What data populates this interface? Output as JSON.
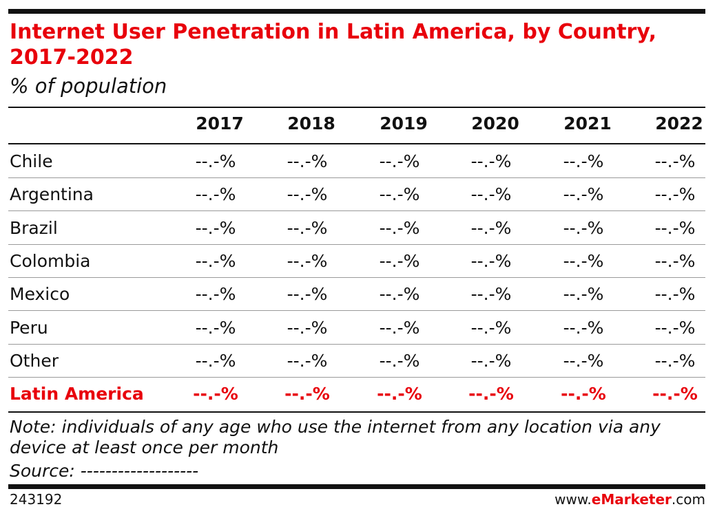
{
  "header": {
    "title": "Internet User Penetration in Latin America, by Country, 2017-2022",
    "subtitle": "% of population"
  },
  "table": {
    "columns": [
      "2017",
      "2018",
      "2019",
      "2020",
      "2021",
      "2022"
    ],
    "rows": [
      [
        "Chile",
        "--.-%",
        "--.-%",
        "--.-%",
        "--.-%",
        "--.-%",
        "--.-%"
      ],
      [
        "Argentina",
        "--.-%",
        "--.-%",
        "--.-%",
        "--.-%",
        "--.-%",
        "--.-%"
      ],
      [
        "Brazil",
        "--.-%",
        "--.-%",
        "--.-%",
        "--.-%",
        "--.-%",
        "--.-%"
      ],
      [
        "Colombia",
        "--.-%",
        "--.-%",
        "--.-%",
        "--.-%",
        "--.-%",
        "--.-%"
      ],
      [
        "Mexico",
        "--.-%",
        "--.-%",
        "--.-%",
        "--.-%",
        "--.-%",
        "--.-%"
      ],
      [
        "Peru",
        "--.-%",
        "--.-%",
        "--.-%",
        "--.-%",
        "--.-%",
        "--.-%"
      ],
      [
        "Other",
        "--.-%",
        "--.-%",
        "--.-%",
        "--.-%",
        "--.-%",
        "--.-%"
      ]
    ],
    "total": [
      "Latin America",
      "--.-%",
      "--.-%",
      "--.-%",
      "--.-%",
      "--.-%",
      "--.-%"
    ]
  },
  "notes": {
    "note": "Note: individuals of any age who use the internet from any location via any device at least once per month",
    "source": "Source: -------------------"
  },
  "footer": {
    "id": "243192",
    "brand_prefix": "www.",
    "brand_name": "eMarketer",
    "brand_suffix": ".com"
  }
}
